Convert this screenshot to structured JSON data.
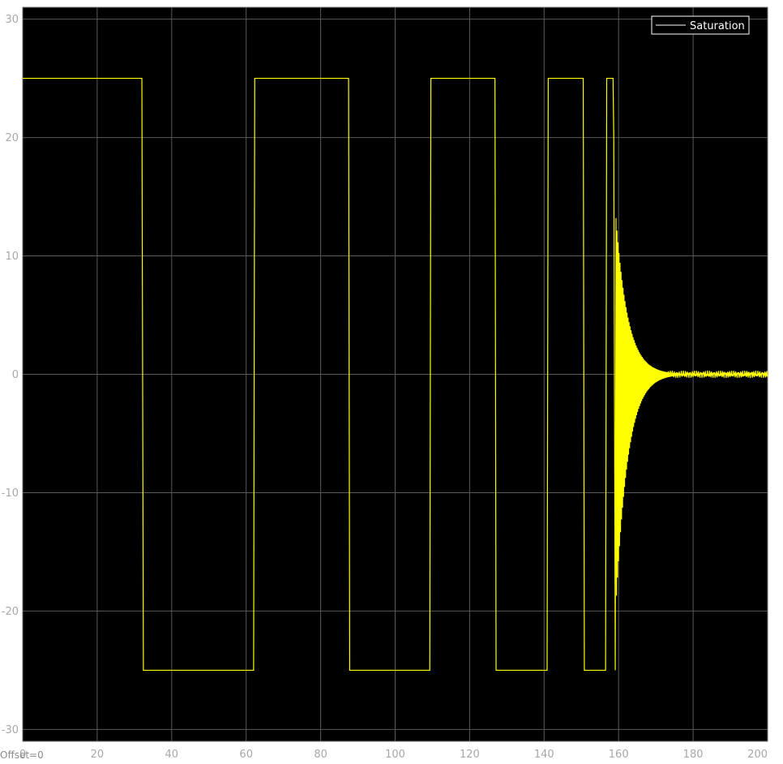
{
  "chart_data": {
    "type": "line",
    "title": "",
    "xlabel": "",
    "ylabel": "",
    "xlim": [
      0,
      200
    ],
    "ylim": [
      -31,
      31
    ],
    "xticks": [
      0,
      20,
      40,
      60,
      80,
      100,
      120,
      140,
      160,
      180,
      200
    ],
    "yticks": [
      -30,
      -20,
      -10,
      0,
      10,
      20,
      30
    ],
    "xtick_labels": [
      "0",
      "20",
      "40",
      "60",
      "80",
      "100",
      "120",
      "140",
      "160",
      "180",
      "200"
    ],
    "ytick_labels": [
      "-30",
      "-20",
      "-10",
      "0",
      "10",
      "20",
      "30"
    ],
    "grid": true,
    "background": "#000000",
    "grid_color": "#5a5a5a",
    "legend": {
      "placement": "top-right",
      "entries": [
        {
          "label": "Saturation",
          "line_color": "#ffffff"
        }
      ]
    },
    "series": [
      {
        "name": "Saturation",
        "color": "#ffff00",
        "x": [
          0,
          32,
          32.4,
          62,
          62.3,
          87.5,
          87.8,
          109.3,
          109.6,
          126.8,
          127.1,
          140.8,
          141.1,
          150.5,
          150.8,
          156.5,
          156.8,
          158.5,
          158.7,
          159.1,
          159.3
        ],
        "y": [
          25,
          25,
          -25,
          -25,
          25,
          25,
          -25,
          -25,
          25,
          25,
          -25,
          -25,
          25,
          25,
          -25,
          -25,
          25,
          25,
          20,
          -25,
          13
        ],
        "oscillation": {
          "description_values": "decaying oscillation after saturation ends",
          "t_start": 159.3,
          "t_end": 200,
          "peak_positive": 13.2,
          "peak_negative": -19.5,
          "settles_to": 0,
          "residual_amplitude": 0.3
        }
      }
    ]
  },
  "footer": {
    "offset_text": "Offset=0"
  }
}
